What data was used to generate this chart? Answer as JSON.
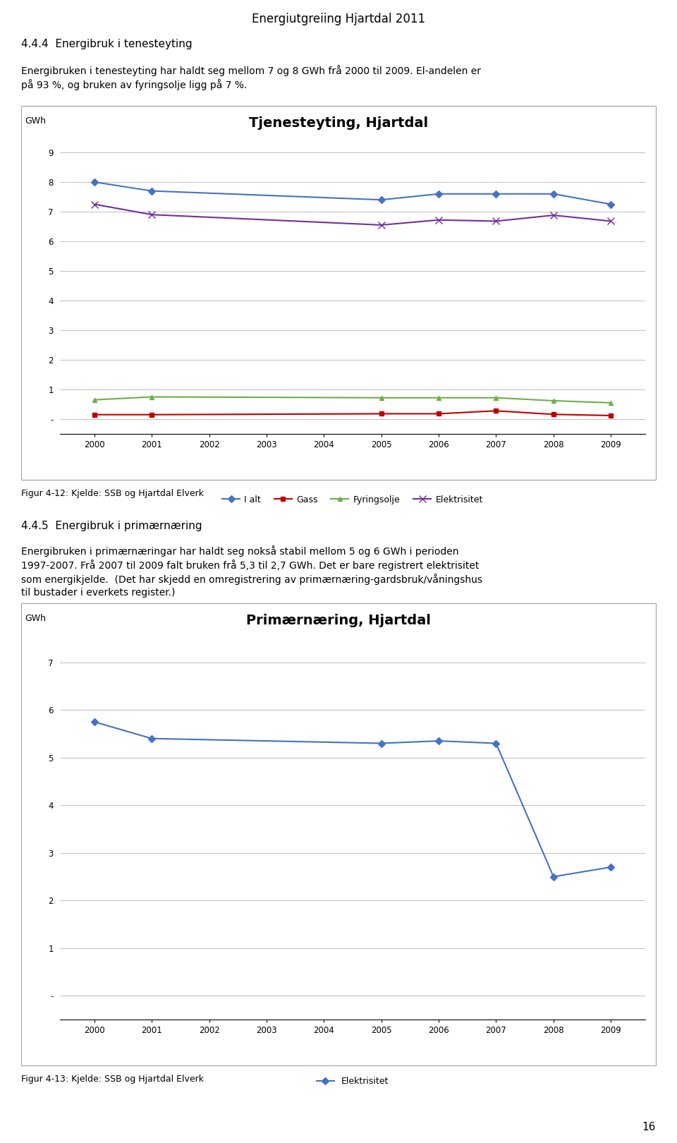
{
  "page_title": "Energiutgreiing Hjartdal 2011",
  "section1_heading": "4.4.4  Energibruk i tenesteyting",
  "section1_text1": "Energibruken i tenesteyting har haldt seg mellom 7 og 8 GWh frå 2000 til 2009. El-andelen er",
  "section1_text2": "på 93 %, og bruken av fyringsolje ligg på 7 %.",
  "chart1_title": "Tjenesteyting, Hjartdal",
  "chart1_ylabel": "GWh",
  "chart1_years": [
    2000,
    2001,
    2002,
    2003,
    2004,
    2005,
    2006,
    2007,
    2008,
    2009
  ],
  "chart1_ialt": [
    8.0,
    7.7,
    null,
    null,
    null,
    7.4,
    7.6,
    7.6,
    7.6,
    7.25
  ],
  "chart1_gass": [
    0.15,
    0.15,
    null,
    null,
    null,
    0.18,
    0.18,
    0.28,
    0.16,
    0.12
  ],
  "chart1_fyringsolje": [
    0.65,
    0.75,
    null,
    null,
    null,
    0.72,
    0.72,
    0.72,
    0.62,
    0.55
  ],
  "chart1_elektrisitet": [
    7.25,
    6.9,
    null,
    null,
    null,
    6.55,
    6.72,
    6.68,
    6.88,
    6.68
  ],
  "chart1_ylim": [
    -0.5,
    9.5
  ],
  "chart1_yticks": [
    0,
    1,
    2,
    3,
    4,
    5,
    6,
    7,
    8,
    9
  ],
  "chart1_ytick_labels": [
    "-",
    "1",
    "2",
    "3",
    "4",
    "5",
    "6",
    "7",
    "8",
    "9"
  ],
  "chart1_figcaption": "Figur 4-12: Kjelde: SSB og Hjartdal Elverk",
  "chart1_legend": [
    "I alt",
    "Gass",
    "Fyringsolje",
    "Elektrisitet"
  ],
  "chart1_colors": [
    "#4472C4",
    "#C00000",
    "#70AD47",
    "#7030A0"
  ],
  "section2_heading": "4.4.5  Energibruk i primærnæring",
  "section2_text1": "Energibruken i primærnæringar har haldt seg nokså stabil mellom 5 og 6 GWh i perioden",
  "section2_text2": "1997-2007. Frå 2007 til 2009 falt bruken frå 5,3 til 2,7 GWh. Det er bare registrert elektrisitet",
  "section2_text3": "som energikjelde.  (Det har skjedd en omregistrering av primærnæring-gardsbruk/våningshus",
  "section2_text4": "til bustader i everkets register.)",
  "chart2_title": "Primærnæring, Hjartdal",
  "chart2_ylabel": "GWh",
  "chart2_years": [
    2000,
    2001,
    2002,
    2003,
    2004,
    2005,
    2006,
    2007,
    2008,
    2009
  ],
  "chart2_elektrisitet": [
    5.75,
    5.4,
    null,
    null,
    null,
    5.3,
    5.35,
    5.3,
    2.5,
    2.7
  ],
  "chart2_ylim": [
    -0.5,
    7.5
  ],
  "chart2_yticks": [
    0,
    1,
    2,
    3,
    4,
    5,
    6,
    7
  ],
  "chart2_ytick_labels": [
    "-",
    "1",
    "2",
    "3",
    "4",
    "5",
    "6",
    "7"
  ],
  "chart2_figcaption": "Figur 4-13: Kjelde: SSB og Hjartdal Elverk",
  "chart2_legend": [
    "Elektrisitet"
  ],
  "chart2_colors": [
    "#4472C4"
  ],
  "page_number": "16",
  "background_color": "#FFFFFF",
  "grid_color": "#BFBFBF",
  "text_color": "#000000",
  "box_color": "#D0D0D0"
}
